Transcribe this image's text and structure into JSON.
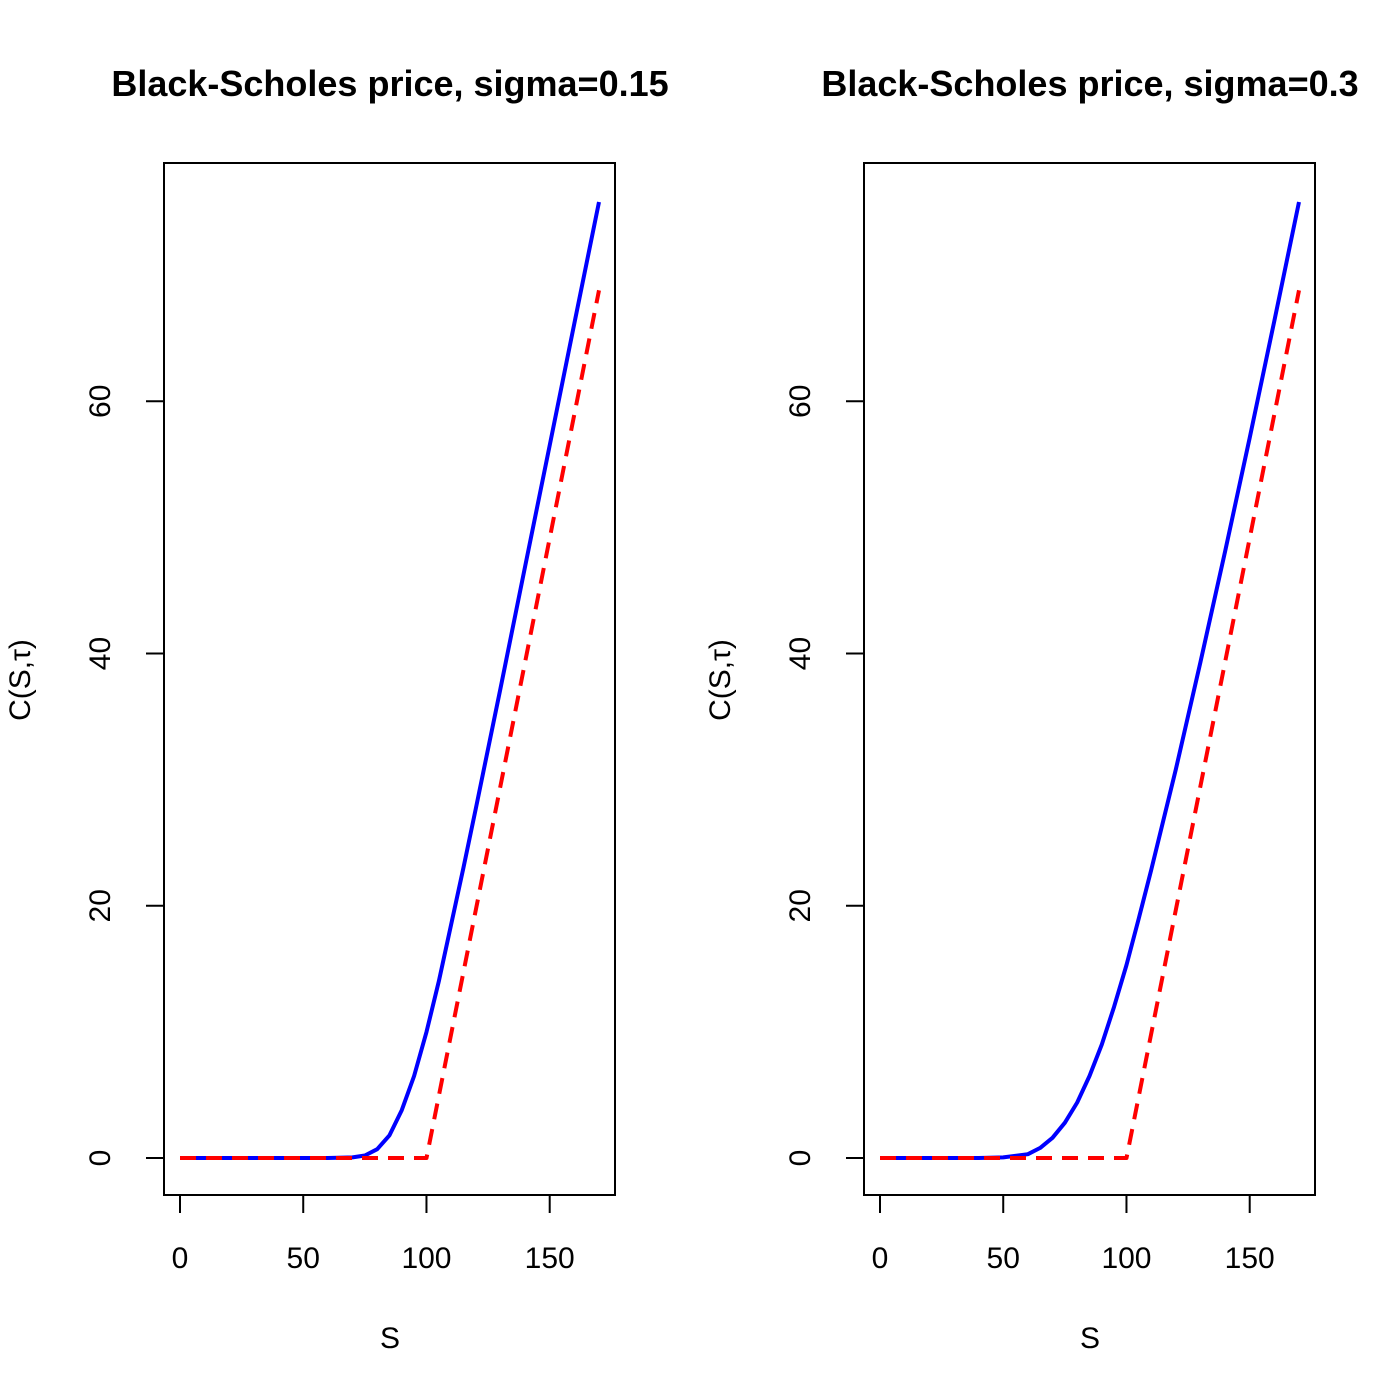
{
  "chart_data": [
    {
      "type": "line",
      "title": "Black-Scholes price, sigma=0.15",
      "xlabel": "S",
      "ylabel": "C(S,τ)",
      "xlim": [
        0,
        170
      ],
      "ylim": [
        0,
        75.8
      ],
      "x_ticks": [
        0,
        50,
        100,
        150
      ],
      "y_ticks": [
        0,
        20,
        40,
        60
      ],
      "grid": false,
      "series": [
        {
          "line": "solid",
          "color": "#0000ff",
          "x": [
            0,
            20,
            40,
            60,
            70,
            75,
            80,
            85,
            90,
            95,
            100,
            105,
            110,
            115,
            120,
            130,
            140,
            150,
            160,
            170
          ],
          "y": [
            0,
            0,
            0,
            0,
            0.05,
            0.2,
            0.7,
            1.8,
            3.8,
            6.5,
            10.0,
            14.0,
            18.5,
            23.0,
            27.7,
            37.2,
            46.9,
            56.5,
            66.2,
            75.8
          ]
        },
        {
          "line": "dashed",
          "color": "#ff0000",
          "x": [
            0,
            100,
            170
          ],
          "y": [
            0,
            0,
            68.8
          ]
        }
      ]
    },
    {
      "type": "line",
      "title": "Black-Scholes price, sigma=0.3",
      "xlabel": "S",
      "ylabel": "C(S,τ)",
      "xlim": [
        0,
        170
      ],
      "ylim": [
        0,
        75.8
      ],
      "x_ticks": [
        0,
        50,
        100,
        150
      ],
      "y_ticks": [
        0,
        20,
        40,
        60
      ],
      "grid": false,
      "series": [
        {
          "line": "solid",
          "color": "#0000ff",
          "x": [
            0,
            20,
            40,
            50,
            60,
            65,
            70,
            75,
            80,
            85,
            90,
            95,
            100,
            105,
            110,
            120,
            130,
            140,
            150,
            160,
            170
          ],
          "y": [
            0,
            0,
            0,
            0.05,
            0.3,
            0.8,
            1.6,
            2.8,
            4.4,
            6.5,
            9.0,
            12.0,
            15.3,
            19.0,
            22.8,
            30.8,
            39.3,
            48.1,
            57.1,
            66.4,
            75.8
          ]
        },
        {
          "line": "dashed",
          "color": "#ff0000",
          "x": [
            0,
            100,
            170
          ],
          "y": [
            0,
            0,
            68.8
          ]
        }
      ]
    }
  ]
}
